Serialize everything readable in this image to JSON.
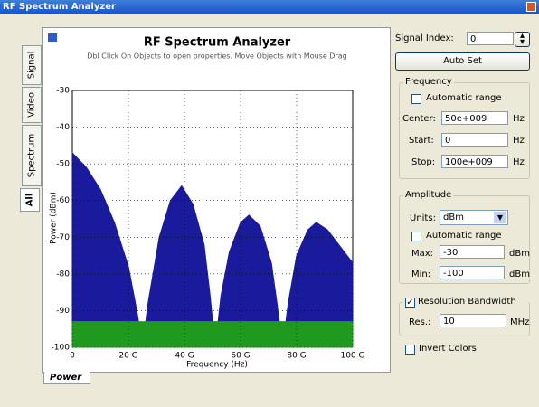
{
  "window": {
    "title": "RF Spectrum Analyzer"
  },
  "tabs": [
    "Signal",
    "Video",
    "Spectrum",
    "All"
  ],
  "bottom_tab": "Power",
  "chart_data": {
    "type": "area",
    "title": "RF Spectrum Analyzer",
    "subtitle": "Dbl Click On Objects to open properties. Move Objects with Mouse Drag",
    "x_label": "Frequency (Hz)",
    "y_label": "Power (dBm)",
    "xlim": [
      0,
      100000000000.0
    ],
    "xticks": [
      0,
      {
        "value": 20000000000.0,
        "label": "20 G"
      },
      {
        "value": 40000000000.0,
        "label": "40 G"
      },
      {
        "value": 60000000000.0,
        "label": "60 G"
      },
      {
        "value": 80000000000.0,
        "label": "80 G"
      },
      {
        "value": 100000000000.0,
        "label": "100 G"
      }
    ],
    "ylim": [
      -100,
      -30
    ],
    "yticks": [
      -30,
      -40,
      -50,
      -60,
      -70,
      -80,
      -90,
      -100
    ],
    "series": [
      {
        "color": "#1a1a9c",
        "x": [
          0,
          5000000000.0,
          10000000000.0,
          15000000000.0,
          20000000000.0,
          23000000000.0,
          25000000000.0,
          27000000000.0,
          31000000000.0,
          35000000000.0,
          39000000000.0,
          43000000000.0,
          47000000000.0,
          49000000000.0,
          51000000000.0,
          53000000000.0,
          56000000000.0,
          60000000000.0,
          63000000000.0,
          67000000000.0,
          71000000000.0,
          73000000000.0,
          75000000000.0,
          77000000000.0,
          80000000000.0,
          84000000000.0,
          87000000000.0,
          91000000000.0,
          95000000000.0,
          100000000000.0
        ],
        "values": [
          -47,
          -51,
          -57,
          -66,
          -78,
          -90,
          -100,
          -88,
          -70,
          -60,
          -56,
          -61,
          -72,
          -85,
          -100,
          -86,
          -74,
          -66,
          -64,
          -67,
          -77,
          -88,
          -100,
          -88,
          -75,
          -68,
          -66,
          -68,
          -72,
          -77
        ]
      },
      {
        "color": "#1f9a1f",
        "x": [
          0,
          100000000000.0
        ],
        "values": [
          -93,
          -93
        ]
      }
    ]
  },
  "controls": {
    "signal_index": {
      "label": "Signal Index:",
      "value": "0"
    },
    "auto_set": "Auto Set",
    "frequency": {
      "title": "Frequency",
      "auto_range": {
        "label": "Automatic range",
        "checked": false
      },
      "center": {
        "label": "Center:",
        "value": "50e+009",
        "unit": "Hz"
      },
      "start": {
        "label": "Start:",
        "value": "0",
        "unit": "Hz"
      },
      "stop": {
        "label": "Stop:",
        "value": "100e+009",
        "unit": "Hz"
      }
    },
    "amplitude": {
      "title": "Amplitude",
      "units": {
        "label": "Units:",
        "value": "dBm"
      },
      "auto_range": {
        "label": "Automatic range",
        "checked": false
      },
      "max": {
        "label": "Max:",
        "value": "-30",
        "unit": "dBm"
      },
      "min": {
        "label": "Min:",
        "value": "-100",
        "unit": "dBm"
      }
    },
    "resolution_bandwidth": {
      "title": "Resolution Bandwidth",
      "checked": true,
      "res": {
        "label": "Res.:",
        "value": "10",
        "unit": "MHz"
      }
    },
    "invert_colors": {
      "label": "Invert Colors",
      "checked": false
    }
  }
}
